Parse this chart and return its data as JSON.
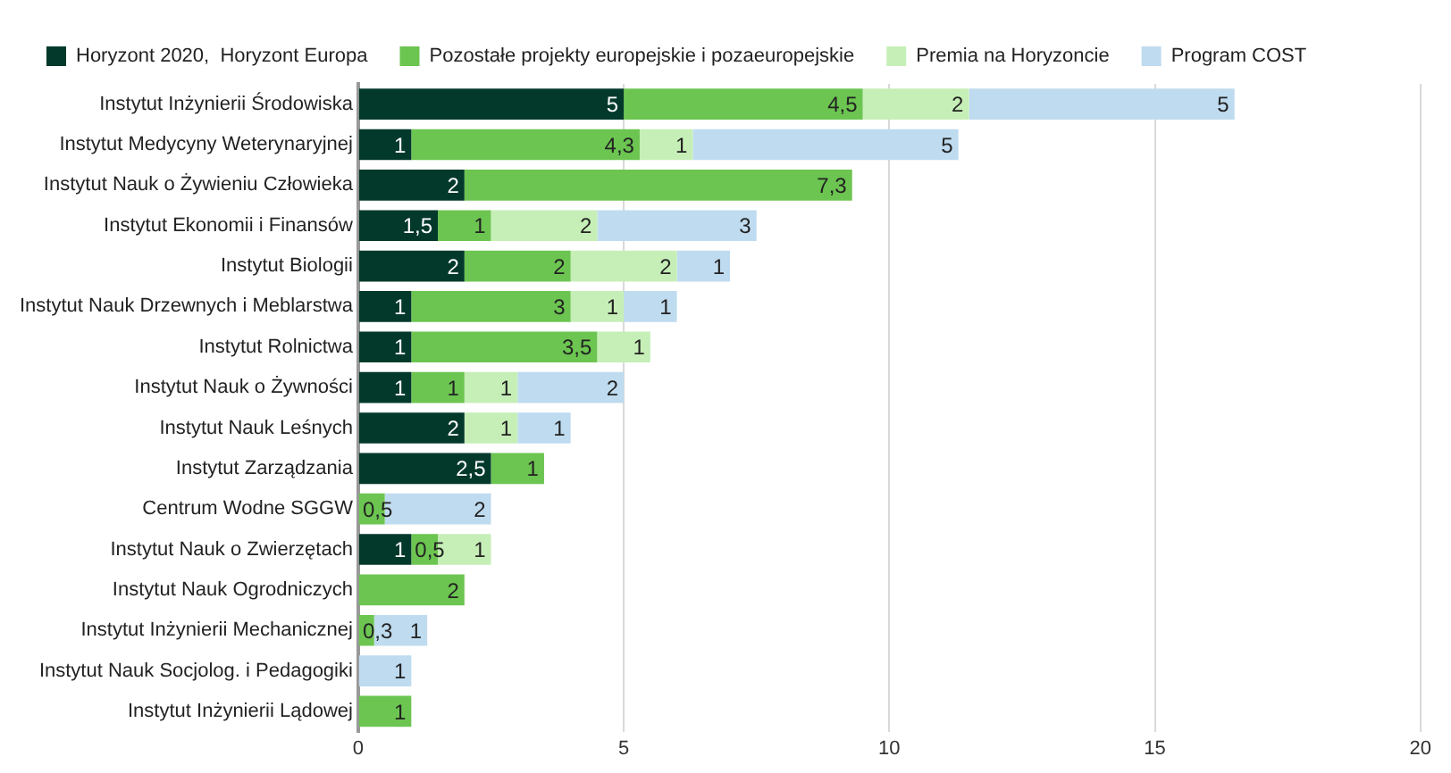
{
  "chart_data": {
    "type": "bar",
    "orientation": "horizontal",
    "stacked": true,
    "legend": "top",
    "grid": "x",
    "categories": [
      "Instytut Inżynierii Środowiska",
      "Instytut Medycyny Weterynaryjnej",
      "Instytut Nauk o Żywieniu Człowieka",
      "Instytut Ekonomii i Finansów",
      "Instytut Biologii",
      "Instytut Nauk Drzewnych i Meblarstwa",
      "Instytut Rolnictwa",
      "Instytut Nauk o Żywności",
      "Instytut Nauk Leśnych",
      "Instytut Zarządzania",
      "Centrum Wodne SGGW",
      "Instytut Nauk o Zwierzętach",
      "Instytut Nauk Ogrodniczych",
      "Instytut Inżynierii Mechanicznej",
      "Instytut Nauk Socjolog. i Pedagogiki",
      "Instytut Inżynierii Lądowej"
    ],
    "xlim": [
      0,
      20
    ],
    "xticks": [
      0,
      5,
      10,
      15,
      20
    ],
    "series": [
      {
        "name": "Horyzont 2020,  Horyzont Europa",
        "color": "#03392b",
        "values": [
          5,
          1,
          2,
          1.5,
          2,
          1,
          1,
          1,
          2,
          2.5,
          null,
          1,
          null,
          null,
          null,
          null
        ],
        "value_labels": [
          "5",
          "1",
          "2",
          "1,5",
          "2",
          "1",
          "1",
          "1",
          "2",
          "2,5",
          null,
          "1",
          null,
          null,
          null,
          null
        ]
      },
      {
        "name": "Pozostałe projekty europejskie i pozaeuropejskie",
        "color": "#6cc551",
        "values": [
          4.5,
          4.3,
          7.3,
          1,
          2,
          3,
          3.5,
          1,
          null,
          1,
          0.5,
          0.5,
          2,
          0.3,
          null,
          1
        ],
        "value_labels": [
          "4,5",
          "4,3",
          "7,3",
          "1",
          "2",
          "3",
          "3,5",
          "1",
          null,
          "1",
          "0,5",
          "0,5",
          "2",
          "0,3",
          null,
          "1"
        ]
      },
      {
        "name": "Premia na Horyzoncie",
        "color": "#c6efb7",
        "values": [
          2,
          1,
          null,
          2,
          2,
          1,
          1,
          1,
          1,
          null,
          null,
          1,
          null,
          null,
          null,
          null
        ],
        "value_labels": [
          "2",
          "1",
          null,
          "2",
          "2",
          "1",
          "1",
          "1",
          "1",
          null,
          null,
          "1",
          null,
          null,
          null,
          null
        ]
      },
      {
        "name": "Program COST",
        "color": "#bfdbef",
        "values": [
          5,
          5,
          null,
          3,
          1,
          1,
          null,
          2,
          1,
          null,
          2,
          null,
          null,
          1,
          1,
          null
        ],
        "value_labels": [
          "5",
          "5",
          null,
          "3",
          "1",
          "1",
          null,
          "2",
          "1",
          null,
          "2",
          null,
          null,
          "1",
          "1",
          null
        ]
      }
    ]
  }
}
